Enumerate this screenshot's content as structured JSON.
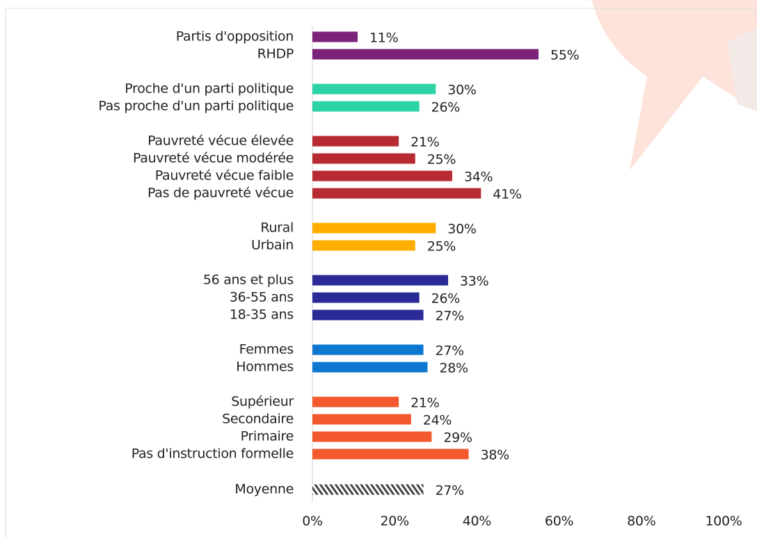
{
  "chart_data": {
    "type": "barh",
    "categories": [
      "Partis d'opposition",
      "RHDP",
      "Proche d'un parti politique",
      "Pas proche d'un parti politique",
      "Pauvreté vécue élevée",
      "Pauvreté vécue modérée",
      "Pauvreté vécue faible",
      "Pas de pauvreté vécue",
      "Rural",
      "Urbain",
      "56 ans et plus",
      "36-55 ans",
      "18-35 ans",
      "Femmes",
      "Hommes",
      "Supérieur",
      "Secondaire",
      "Primaire",
      "Pas d'instruction formelle"
    ],
    "values": [
      11,
      55,
      30,
      26,
      21,
      25,
      34,
      41,
      30,
      25,
      33,
      26,
      27,
      27,
      28,
      21,
      24,
      29,
      38
    ],
    "value_labels": [
      "11%",
      "55%",
      "30%",
      "26%",
      "21%",
      "25%",
      "34%",
      "41%",
      "30%",
      "25%",
      "33%",
      "26%",
      "27%",
      "27%",
      "28%",
      "21%",
      "24%",
      "29%",
      "38%"
    ],
    "colors": [
      "#7b2378",
      "#7b2378",
      "#2ed3a5",
      "#2ed3a5",
      "#b82a32",
      "#b82a32",
      "#b82a32",
      "#b82a32",
      "#ffad00",
      "#ffad00",
      "#2a2a96",
      "#2a2a96",
      "#2a2a96",
      "#0e78d0",
      "#0e78d0",
      "#f4582e",
      "#f4582e",
      "#f4582e",
      "#f4582e"
    ],
    "average": {
      "category": "Moyenne",
      "value": 27,
      "value_label": "27%",
      "color": "#444444",
      "pattern": "hatched"
    },
    "xlim": [
      0,
      100
    ],
    "xticks": [
      {
        "value": 0,
        "label": "0%"
      },
      {
        "value": 20,
        "label": "20%"
      },
      {
        "value": 40,
        "label": "40%"
      },
      {
        "value": 60,
        "label": "60%"
      },
      {
        "value": 80,
        "label": "80%"
      },
      {
        "value": 100,
        "label": "100%"
      }
    ]
  }
}
